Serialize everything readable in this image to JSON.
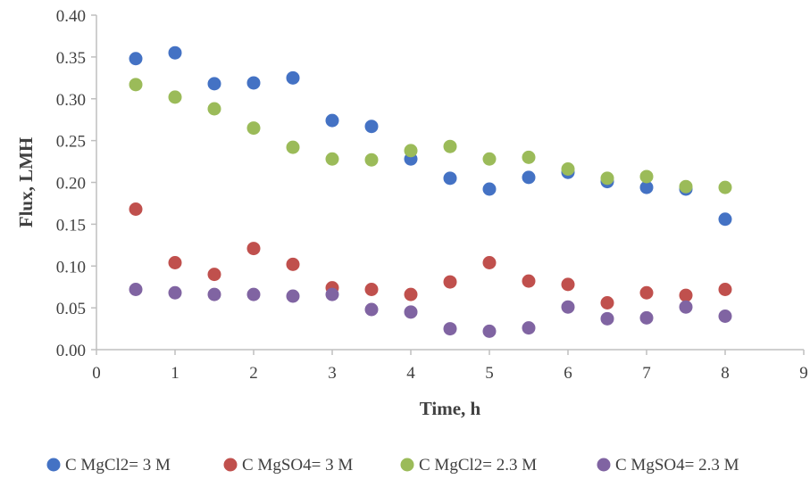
{
  "chart_data": {
    "type": "scatter",
    "title": "",
    "xlabel": "Time, h",
    "ylabel": "Flux, LMH",
    "xlim": [
      0,
      9
    ],
    "ylim": [
      0.0,
      0.4
    ],
    "x_ticks": [
      0,
      1,
      2,
      3,
      4,
      5,
      6,
      7,
      8,
      9
    ],
    "y_ticks": [
      0.0,
      0.05,
      0.1,
      0.15,
      0.2,
      0.25,
      0.3,
      0.35,
      0.4
    ],
    "y_tick_labels": [
      "0.00",
      "0.05",
      "0.10",
      "0.15",
      "0.20",
      "0.25",
      "0.30",
      "0.35",
      "0.40"
    ],
    "grid": false,
    "legend_position": "bottom",
    "series": [
      {
        "name": "C MgCl2= 3 M",
        "color": "#4472C4",
        "x": [
          0.5,
          1,
          1.5,
          2,
          2.5,
          3,
          3.5,
          4,
          4.5,
          5,
          5.5,
          6,
          6.5,
          7,
          7.5,
          8
        ],
        "y": [
          0.348,
          0.355,
          0.318,
          0.319,
          0.325,
          0.274,
          0.267,
          0.228,
          0.205,
          0.192,
          0.206,
          0.212,
          0.201,
          0.194,
          0.192,
          0.156
        ]
      },
      {
        "name": "C MgSO4= 3 M",
        "color": "#C0504D",
        "x": [
          0.5,
          1,
          1.5,
          2,
          2.5,
          3,
          3.5,
          4,
          4.5,
          5,
          5.5,
          6,
          6.5,
          7,
          7.5,
          8
        ],
        "y": [
          0.168,
          0.104,
          0.09,
          0.121,
          0.102,
          0.074,
          0.072,
          0.066,
          0.081,
          0.104,
          0.082,
          0.078,
          0.056,
          0.068,
          0.065,
          0.072
        ]
      },
      {
        "name": "C MgCl2= 2.3 M",
        "color": "#9BBB59",
        "x": [
          0.5,
          1,
          1.5,
          2,
          2.5,
          3,
          3.5,
          4,
          4.5,
          5,
          5.5,
          6,
          6.5,
          7,
          7.5,
          8
        ],
        "y": [
          0.317,
          0.302,
          0.288,
          0.265,
          0.242,
          0.228,
          0.227,
          0.238,
          0.243,
          0.228,
          0.23,
          0.216,
          0.205,
          0.207,
          0.195,
          0.194
        ]
      },
      {
        "name": "C MgSO4= 2.3 M",
        "color": "#8064A2",
        "x": [
          0.5,
          1,
          1.5,
          2,
          2.5,
          3,
          3.5,
          4,
          4.5,
          5,
          5.5,
          6,
          6.5,
          7,
          7.5,
          8
        ],
        "y": [
          0.072,
          0.068,
          0.066,
          0.066,
          0.064,
          0.066,
          0.048,
          0.045,
          0.025,
          0.022,
          0.026,
          0.051,
          0.037,
          0.038,
          0.051,
          0.04
        ]
      }
    ]
  }
}
